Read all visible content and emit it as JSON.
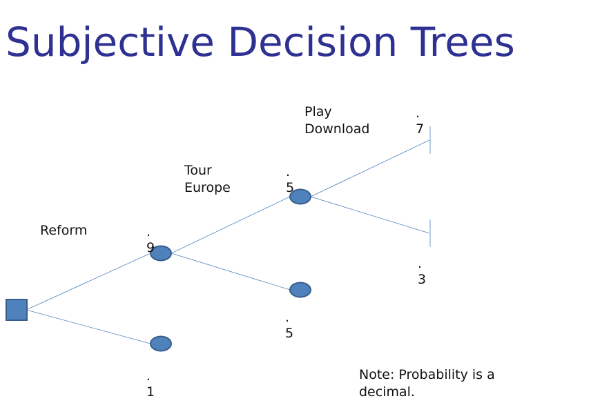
{
  "title": "Subjective Decision Trees",
  "labels": {
    "reform": "Reform",
    "tour_europe": [
      "Tour",
      "Europe"
    ],
    "play_download": [
      "Play",
      "Download"
    ]
  },
  "probabilities": {
    "reform_yes": [
      ".",
      "9"
    ],
    "reform_no": [
      ".",
      "1"
    ],
    "tour_yes": [
      ".",
      "5"
    ],
    "tour_no": [
      ".",
      "5"
    ],
    "play_yes": [
      ".",
      "7"
    ],
    "play_no": [
      ".",
      "3"
    ]
  },
  "note": [
    "Note:  Probability is a",
    "decimal."
  ],
  "colors": {
    "title": "#2e3192",
    "node_fill": "#4f81bd",
    "node_stroke": "#385d8a",
    "branch": "#4f81bd"
  }
}
